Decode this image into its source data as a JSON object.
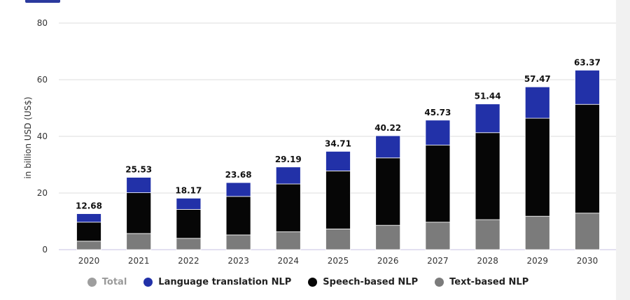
{
  "colors": {
    "language_translation": "#2231a8",
    "speech_based": "#060606",
    "text_based": "#7b7b7b",
    "total": "#9e9e9e",
    "grid": "#dcdcdc",
    "axis": "#c7c2e0"
  },
  "legend": [
    {
      "label": "Total",
      "color": "#9e9e9e",
      "muted": true
    },
    {
      "label": "Language translation NLP",
      "color": "#2231a8",
      "muted": false
    },
    {
      "label": "Speech-based NLP",
      "color": "#060606",
      "muted": false
    },
    {
      "label": "Text-based NLP",
      "color": "#7b7b7b",
      "muted": false
    }
  ],
  "chart_data": {
    "type": "bar",
    "stacked": true,
    "categories": [
      "2020",
      "2021",
      "2022",
      "2023",
      "2024",
      "2025",
      "2026",
      "2027",
      "2028",
      "2029",
      "2030"
    ],
    "series": [
      {
        "name": "Text-based NLP",
        "values": [
          3.0,
          5.7,
          4.0,
          5.2,
          6.3,
          7.3,
          8.6,
          9.7,
          10.6,
          11.8,
          12.9
        ]
      },
      {
        "name": "Speech-based NLP",
        "values": [
          6.7,
          14.4,
          10.2,
          13.6,
          16.9,
          20.5,
          23.8,
          27.2,
          30.7,
          34.6,
          38.4
        ]
      },
      {
        "name": "Language translation NLP",
        "values": [
          3.0,
          5.43,
          3.97,
          4.88,
          5.99,
          6.91,
          7.82,
          8.83,
          10.14,
          11.07,
          12.07
        ]
      }
    ],
    "totals": [
      "12.68",
      "25.53",
      "18.17",
      "23.68",
      "29.19",
      "34.71",
      "40.22",
      "45.73",
      "51.44",
      "57.47",
      "63.37"
    ],
    "ylabel": "in billion USD (US$)",
    "yticks": [
      0,
      20,
      40,
      60,
      80
    ],
    "ylim": [
      0,
      80
    ],
    "grid": true,
    "legend_position": "bottom"
  }
}
